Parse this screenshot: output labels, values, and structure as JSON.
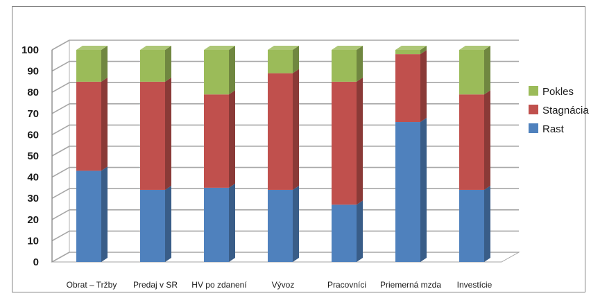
{
  "chart_data": {
    "type": "bar",
    "stacked": true,
    "three_d": true,
    "categories": [
      "Obrat – Tržby",
      "Predaj v SR",
      "HV po zdanení",
      "Vývoz",
      "Pracovníci",
      "Priemerná mzda",
      "Investície"
    ],
    "series": [
      {
        "name": "Rast",
        "color": "#4f81bd",
        "values": [
          43,
          34,
          35,
          34,
          27,
          66,
          34
        ]
      },
      {
        "name": "Stagnácia",
        "color": "#c0504d",
        "values": [
          42,
          51,
          44,
          55,
          58,
          32,
          45
        ]
      },
      {
        "name": "Pokles",
        "color": "#9bbb59",
        "values": [
          15,
          15,
          21,
          11,
          15,
          2,
          21
        ]
      }
    ],
    "legend_order": [
      "Pokles",
      "Stagnácia",
      "Rast"
    ],
    "legend_position": "right",
    "ylim": [
      0,
      100
    ],
    "yticks": [
      0,
      10,
      20,
      30,
      40,
      50,
      60,
      70,
      80,
      90,
      100
    ],
    "grid": true,
    "title": "",
    "xlabel": "",
    "ylabel": ""
  }
}
